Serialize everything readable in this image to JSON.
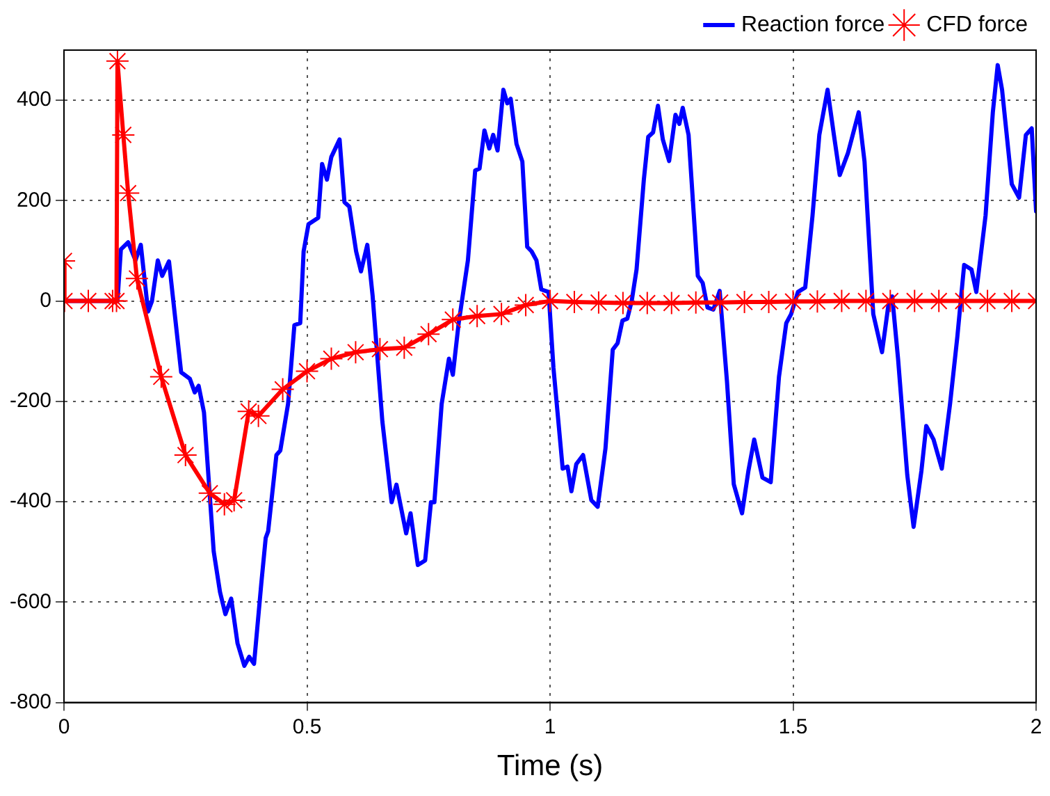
{
  "chart_data": {
    "type": "line",
    "xlabel": "Time (s)",
    "xlim": [
      0,
      2
    ],
    "xticks": [
      0,
      0.5,
      1,
      1.5,
      2
    ],
    "ylim": [
      -800,
      500
    ],
    "yticks": [
      -800,
      -600,
      -400,
      -200,
      0,
      200,
      400
    ],
    "grid": true,
    "legend": "top right",
    "line_style": "solid",
    "series": [
      {
        "name": "Reaction force",
        "color": "#0000ff",
        "marker": "none",
        "x": [
          0,
          0.11,
          0.117,
          0.132,
          0.147,
          0.158,
          0.173,
          0.181,
          0.193,
          0.202,
          0.216,
          0.241,
          0.259,
          0.269,
          0.277,
          0.288,
          0.308,
          0.321,
          0.332,
          0.344,
          0.357,
          0.371,
          0.381,
          0.391,
          0.406,
          0.415,
          0.42,
          0.437,
          0.445,
          0.461,
          0.474,
          0.486,
          0.493,
          0.503,
          0.523,
          0.531,
          0.541,
          0.55,
          0.567,
          0.577,
          0.587,
          0.601,
          0.611,
          0.624,
          0.635,
          0.655,
          0.674,
          0.684,
          0.704,
          0.713,
          0.728,
          0.743,
          0.755,
          0.762,
          0.777,
          0.792,
          0.8,
          0.812,
          0.831,
          0.846,
          0.855,
          0.865,
          0.875,
          0.883,
          0.892,
          0.904,
          0.912,
          0.919,
          0.931,
          0.943,
          0.953,
          0.962,
          0.972,
          0.982,
          0.997,
          1.007,
          1.026,
          1.036,
          1.044,
          1.054,
          1.068,
          1.085,
          1.098,
          1.114,
          1.129,
          1.139,
          1.149,
          1.159,
          1.168,
          1.178,
          1.193,
          1.202,
          1.212,
          1.222,
          1.232,
          1.245,
          1.258,
          1.266,
          1.273,
          1.285,
          1.304,
          1.314,
          1.324,
          1.336,
          1.349,
          1.364,
          1.378,
          1.395,
          1.408,
          1.42,
          1.437,
          1.454,
          1.471,
          1.486,
          1.496,
          1.51,
          1.525,
          1.54,
          1.554,
          1.571,
          1.584,
          1.596,
          1.613,
          1.635,
          1.647,
          1.665,
          1.683,
          1.696,
          1.704,
          1.716,
          1.735,
          1.748,
          1.764,
          1.774,
          1.789,
          1.806,
          1.823,
          1.838,
          1.852,
          1.867,
          1.877,
          1.896,
          1.911,
          1.921,
          1.93,
          1.95,
          1.965,
          1.979,
          1.991,
          2.0
        ],
        "values": [
          0,
          0,
          103,
          117,
          81,
          112,
          -21,
          0,
          81,
          50,
          79,
          -142,
          -155,
          -182,
          -169,
          -222,
          -499,
          -580,
          -624,
          -593,
          -682,
          -727,
          -709,
          -723,
          -562,
          -472,
          -459,
          -307,
          -298,
          -205,
          -48,
          -44,
          99,
          153,
          166,
          273,
          242,
          287,
          322,
          197,
          188,
          99,
          59,
          112,
          10,
          -240,
          -401,
          -366,
          -463,
          -423,
          -526,
          -517,
          -401,
          -401,
          -205,
          -115,
          -147,
          -44,
          81,
          260,
          264,
          340,
          304,
          331,
          300,
          421,
          394,
          403,
          313,
          278,
          108,
          99,
          81,
          23,
          18,
          -133,
          -334,
          -330,
          -379,
          -325,
          -307,
          -397,
          -410,
          -294,
          -97,
          -84,
          -39,
          -35,
          0,
          63,
          242,
          327,
          336,
          389,
          322,
          279,
          371,
          353,
          385,
          331,
          50,
          36,
          -13,
          -17,
          20,
          -160,
          -365,
          -423,
          -339,
          -276,
          -352,
          -361,
          -151,
          -44,
          -26,
          18,
          27,
          170,
          331,
          421,
          331,
          251,
          295,
          376,
          278,
          -26,
          -102,
          -9,
          9,
          -115,
          -347,
          -450,
          -339,
          -249,
          -276,
          -334,
          -205,
          -71,
          72,
          63,
          18,
          170,
          376,
          470,
          421,
          233,
          206,
          331,
          344,
          179
        ]
      },
      {
        "name": "CFD force",
        "color": "#ff0000",
        "marker": "cross",
        "x": [
          0,
          0.001,
          0.05,
          0.1,
          0.108,
          0.11,
          0.122,
          0.132,
          0.15,
          0.2,
          0.25,
          0.3,
          0.33,
          0.35,
          0.38,
          0.4,
          0.45,
          0.5,
          0.55,
          0.6,
          0.65,
          0.7,
          0.75,
          0.8,
          0.85,
          0.9,
          0.95,
          1.0,
          1.05,
          1.1,
          1.15,
          1.2,
          1.25,
          1.3,
          1.35,
          1.4,
          1.45,
          1.5,
          1.55,
          1.6,
          1.65,
          1.7,
          1.75,
          1.8,
          1.85,
          1.9,
          1.95,
          2.0
        ],
        "values": [
          80,
          0,
          0,
          0,
          0,
          478,
          331,
          215,
          45,
          -151,
          -307,
          -383,
          -405,
          -397,
          -220,
          -229,
          -176,
          -140,
          -115,
          -102,
          -96,
          -93,
          -66,
          -37,
          -30,
          -26,
          -8,
          0,
          -2,
          -3,
          -4,
          -4,
          -4,
          -3,
          -3,
          -2,
          -2,
          -1,
          -1,
          0,
          0,
          0,
          0,
          0,
          0,
          0,
          0,
          0
        ]
      }
    ]
  }
}
